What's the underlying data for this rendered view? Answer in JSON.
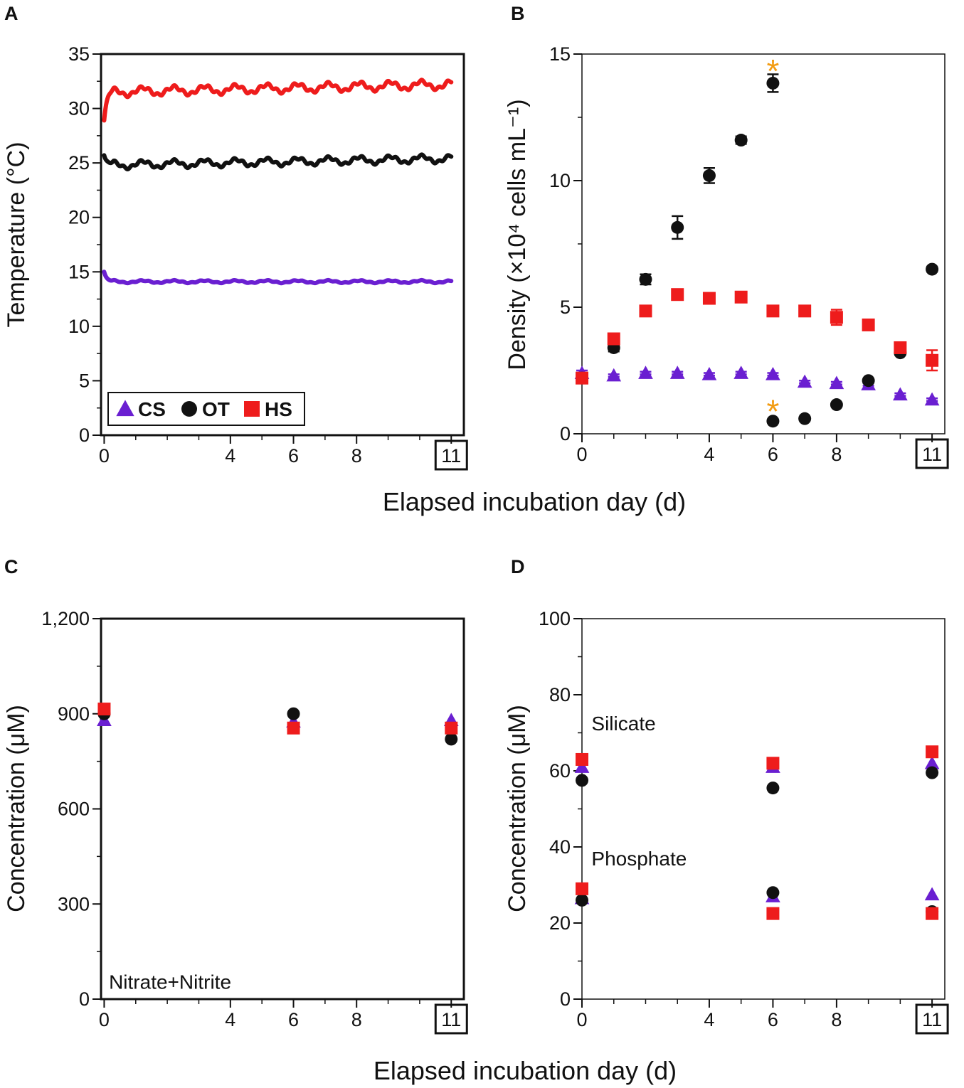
{
  "figure": {
    "x_axis_label": "Elapsed incubation day (d)",
    "colors": {
      "CS": "#6a1fd1",
      "OT": "#111111",
      "HS": "#ee1c1c",
      "asterisk": "#f39c12"
    }
  },
  "chart_data": [
    {
      "id": "A",
      "panel_label": "A",
      "type": "line",
      "ylabel": "Temperature (°C)",
      "ylim": [
        0,
        35
      ],
      "xlim": [
        -0.1,
        11.4
      ],
      "yticks": [
        "0",
        "5",
        "10",
        "15",
        "20",
        "25",
        "30",
        "35"
      ],
      "ytick_values": [
        0,
        5,
        10,
        15,
        20,
        25,
        30,
        35
      ],
      "xticks": [
        "0",
        "4",
        "6",
        "8",
        "11"
      ],
      "xtick_values": [
        0,
        4,
        6,
        8,
        11
      ],
      "boxed_xtick": "11",
      "legend": {
        "position": "bottom-left",
        "entries": [
          {
            "series": "CS",
            "marker": "triangle",
            "label": "CS"
          },
          {
            "series": "OT",
            "marker": "circle",
            "label": "OT"
          },
          {
            "series": "HS",
            "marker": "square",
            "label": "HS"
          }
        ]
      },
      "series": [
        {
          "name": "HS",
          "start": 28.9,
          "plateau": 31.5,
          "end": 32.2,
          "amplitude": 0.35
        },
        {
          "name": "OT",
          "start": 25.7,
          "plateau": 24.8,
          "end": 25.4,
          "amplitude": 0.3
        },
        {
          "name": "CS",
          "start": 15.0,
          "plateau": 14.1,
          "end": 14.1,
          "amplitude": 0.1
        }
      ]
    },
    {
      "id": "B",
      "panel_label": "B",
      "type": "scatter",
      "ylabel": "Density (×10⁴ cells mL⁻¹)",
      "ylim": [
        0,
        15
      ],
      "xlim": [
        0,
        11.4
      ],
      "yticks": [
        "0",
        "5",
        "10",
        "15"
      ],
      "ytick_values": [
        0,
        5,
        10,
        15
      ],
      "xticks": [
        "0",
        "4",
        "6",
        "8",
        "11"
      ],
      "xtick_values": [
        0,
        4,
        6,
        8,
        11
      ],
      "boxed_xtick": "11",
      "series": [
        {
          "name": "CS",
          "marker": "triangle",
          "points": [
            [
              0,
              2.4
            ],
            [
              1,
              2.3
            ],
            [
              2,
              2.4
            ],
            [
              3,
              2.4
            ],
            [
              4,
              2.35
            ],
            [
              5,
              2.4
            ],
            [
              6,
              2.35
            ],
            [
              7,
              2.05
            ],
            [
              8,
              2.0
            ],
            [
              9,
              1.95
            ],
            [
              10,
              1.55
            ],
            [
              11,
              1.35
            ]
          ],
          "err": [
            0.1,
            0.05,
            0.05,
            0.05,
            0.05,
            0.05,
            0.05,
            0.05,
            0.05,
            0.05,
            0.05,
            0.05
          ]
        },
        {
          "name": "OT",
          "marker": "circle",
          "points": [
            [
              0,
              2.2
            ],
            [
              1,
              3.4
            ],
            [
              2,
              6.1
            ],
            [
              3,
              8.15
            ],
            [
              4,
              10.2
            ],
            [
              5,
              11.6
            ],
            [
              6,
              13.85
            ],
            [
              6,
              0.5
            ],
            [
              7,
              0.6
            ],
            [
              8,
              1.15
            ],
            [
              9,
              2.1
            ],
            [
              10,
              3.2
            ],
            [
              11,
              6.5
            ]
          ],
          "err": [
            0.1,
            0.15,
            0.2,
            0.45,
            0.3,
            0.15,
            0.35,
            0.05,
            0.05,
            0.05,
            0.05,
            0.1,
            0.1
          ]
        },
        {
          "name": "HS",
          "marker": "square",
          "points": [
            [
              0,
              2.2
            ],
            [
              1,
              3.75
            ],
            [
              2,
              4.85
            ],
            [
              3,
              5.5
            ],
            [
              4,
              5.35
            ],
            [
              5,
              5.4
            ],
            [
              6,
              4.85
            ],
            [
              7,
              4.85
            ],
            [
              8,
              4.6
            ],
            [
              9,
              4.3
            ],
            [
              10,
              3.4
            ],
            [
              11,
              2.9
            ]
          ],
          "err": [
            0.1,
            0.1,
            0.1,
            0.15,
            0.2,
            0.1,
            0.1,
            0.1,
            0.3,
            0.1,
            0.2,
            0.4
          ]
        }
      ],
      "annotations": [
        {
          "text": "*",
          "x": 6,
          "y": 14.5
        },
        {
          "text": "*",
          "x": 6,
          "y": 1.05
        }
      ]
    },
    {
      "id": "C",
      "panel_label": "C",
      "type": "scatter",
      "ylabel": "Concentration (μM)",
      "ylim": [
        0,
        1200
      ],
      "xlim": [
        -0.1,
        11.4
      ],
      "yticks": [
        "0",
        "300",
        "600",
        "900",
        "1,200"
      ],
      "ytick_values": [
        0,
        300,
        600,
        900,
        1200
      ],
      "xticks": [
        "0",
        "4",
        "6",
        "8",
        "11"
      ],
      "xtick_values": [
        0,
        4,
        6,
        8,
        11
      ],
      "boxed_xtick": "11",
      "series": [
        {
          "name": "CS",
          "marker": "triangle",
          "points": [
            [
              0,
              880
            ],
            [
              6,
              875
            ],
            [
              11,
              880
            ]
          ]
        },
        {
          "name": "OT",
          "marker": "circle",
          "points": [
            [
              0,
              900
            ],
            [
              6,
              900
            ],
            [
              11,
              820
            ]
          ]
        },
        {
          "name": "HS",
          "marker": "square",
          "points": [
            [
              0,
              915
            ],
            [
              6,
              855
            ],
            [
              11,
              855
            ]
          ]
        }
      ],
      "annotations": [
        {
          "text": "Nitrate+Nitrite",
          "x": 0.15,
          "y": 55
        }
      ]
    },
    {
      "id": "D",
      "panel_label": "D",
      "type": "scatter",
      "ylabel": "Concentration (μM)",
      "ylim": [
        0,
        100
      ],
      "xlim": [
        0,
        11.4
      ],
      "yticks": [
        "0",
        "20",
        "40",
        "60",
        "80",
        "100"
      ],
      "ytick_values": [
        0,
        20,
        40,
        60,
        80,
        100
      ],
      "xticks": [
        "0",
        "4",
        "6",
        "8",
        "11"
      ],
      "xtick_values": [
        0,
        4,
        6,
        8,
        11
      ],
      "boxed_xtick": "11",
      "series": [
        {
          "name": "CS",
          "marker": "triangle",
          "points": [
            [
              0,
              61
            ],
            [
              6,
              61
            ],
            [
              11,
              62
            ],
            [
              0,
              26.5
            ],
            [
              6,
              27
            ],
            [
              11,
              27.5
            ]
          ]
        },
        {
          "name": "OT",
          "marker": "circle",
          "points": [
            [
              0,
              57.5
            ],
            [
              6,
              55.5
            ],
            [
              11,
              59.5
            ],
            [
              0,
              26
            ],
            [
              6,
              28
            ],
            [
              11,
              23
            ]
          ]
        },
        {
          "name": "HS",
          "marker": "square",
          "points": [
            [
              0,
              63
            ],
            [
              6,
              62
            ],
            [
              11,
              65
            ],
            [
              0,
              29
            ],
            [
              6,
              22.5
            ],
            [
              11,
              22.5
            ]
          ]
        }
      ],
      "annotations": [
        {
          "text": "Silicate",
          "x": 0.3,
          "y": 72.5
        },
        {
          "text": "Phosphate",
          "x": 0.3,
          "y": 37
        }
      ]
    }
  ]
}
